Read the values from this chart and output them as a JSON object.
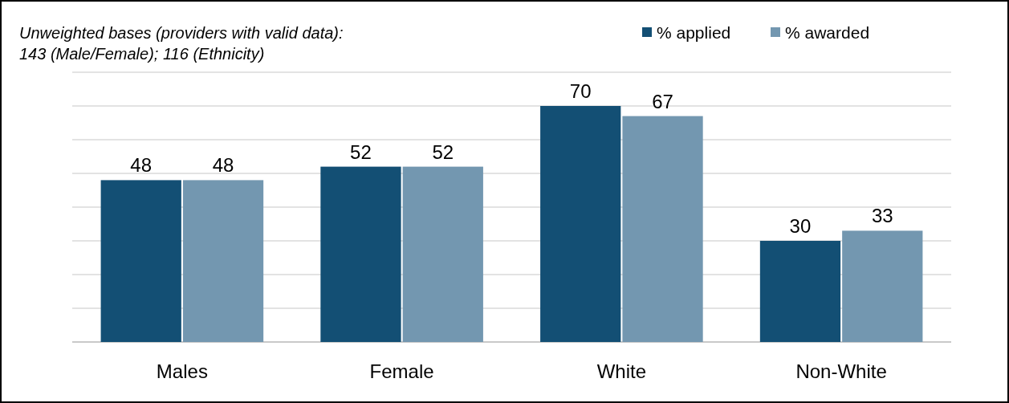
{
  "chart_data": {
    "type": "bar",
    "categories": [
      "Males",
      "Female",
      "White",
      "Non-White"
    ],
    "series": [
      {
        "name": "% applied",
        "color": "#134f74",
        "values": [
          48,
          52,
          70,
          30
        ]
      },
      {
        "name": "% awarded",
        "color": "#7397b0",
        "values": [
          48,
          52,
          67,
          33
        ]
      }
    ],
    "ylim": [
      0,
      80
    ],
    "yticks": [
      {
        "value": 0,
        "label": null
      },
      {
        "value": 10,
        "label": null
      },
      {
        "value": 20,
        "label": null
      },
      {
        "value": 30,
        "label": null
      },
      {
        "value": 40,
        "label": null
      },
      {
        "value": 50,
        "label": null
      },
      {
        "value": 60,
        "label": null
      },
      {
        "value": 70,
        "label": null
      },
      {
        "value": 80,
        "label": null
      }
    ],
    "tick_labels": "x",
    "grid": "y",
    "data_labels": true,
    "legend": "top right",
    "annotations": [
      "Unweighted bases (providers with valid data):",
      "143 (Male/Female);  116 (Ethnicity)"
    ]
  }
}
